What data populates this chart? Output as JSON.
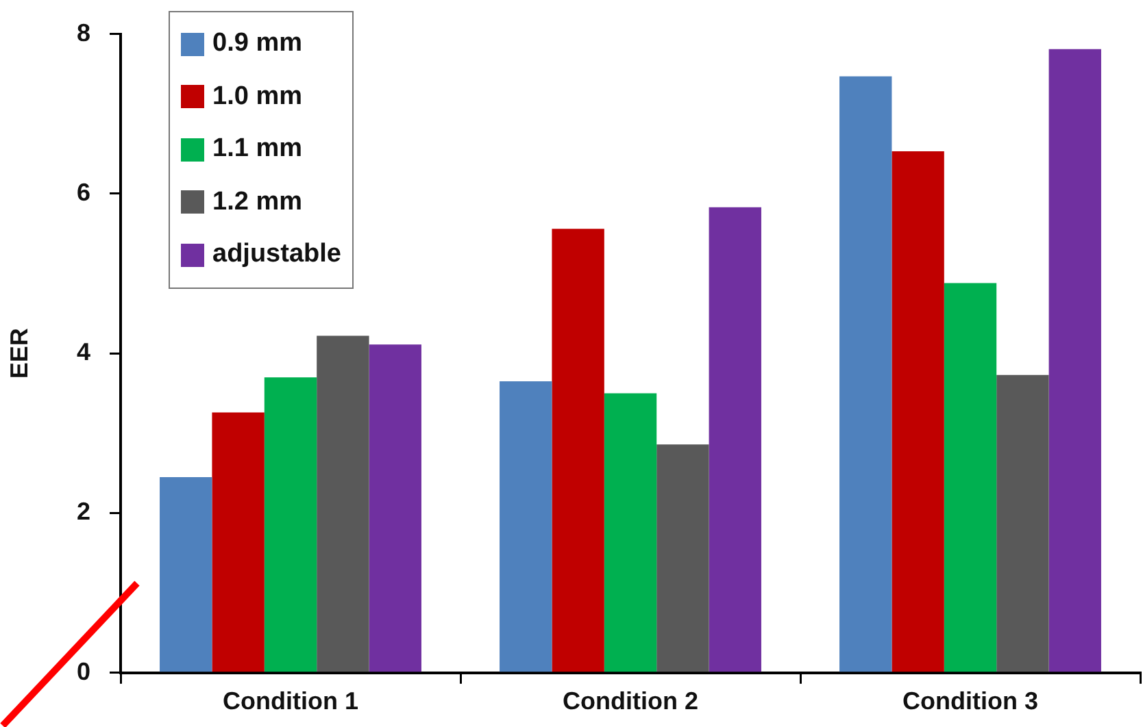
{
  "chart_data": {
    "type": "bar",
    "ylabel": "EER",
    "categories": [
      "Condition 1",
      "Condition 2",
      "Condition 3"
    ],
    "series": [
      {
        "name": "0.9 mm",
        "color": "#4f81bd",
        "values": [
          2.45,
          3.65,
          7.47
        ]
      },
      {
        "name": "1.0 mm",
        "color": "#c00000",
        "values": [
          3.26,
          5.56,
          6.53
        ]
      },
      {
        "name": "1.1 mm",
        "color": "#00b050",
        "values": [
          3.7,
          3.5,
          4.88
        ]
      },
      {
        "name": "1.2 mm",
        "color": "#595959",
        "values": [
          4.22,
          2.86,
          3.73
        ]
      },
      {
        "name": "adjustable",
        "color": "#7030a0",
        "values": [
          4.11,
          5.83,
          7.81
        ]
      }
    ],
    "ylim": [
      0,
      8
    ],
    "yticks": [
      0,
      2,
      4,
      6,
      8
    ],
    "grid": false,
    "legend": "top left"
  }
}
